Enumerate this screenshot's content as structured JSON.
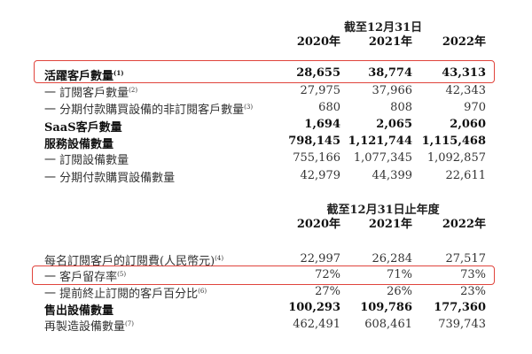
{
  "section1": {
    "header": "截至12月31日",
    "years": [
      "2020年",
      "2021年",
      "2022年"
    ],
    "rows": [
      {
        "label": "活躍客戶數量",
        "note": "(1)",
        "values": [
          "28,655",
          "38,774",
          "43,313"
        ],
        "bold": true,
        "highlighted": true
      },
      {
        "label": "一 訂閱客戶數量",
        "note": "(2)",
        "values": [
          "27,975",
          "37,966",
          "42,343"
        ],
        "bold": false
      },
      {
        "label": "一 分期付款購買設備的非訂閱客戶數量",
        "note": "(3)",
        "values": [
          "680",
          "808",
          "970"
        ],
        "bold": false
      },
      {
        "label": "SaaS客戶數量",
        "note": "",
        "values": [
          "1,694",
          "2,065",
          "2,060"
        ],
        "bold": true
      },
      {
        "label": "服務設備數量",
        "note": "",
        "values": [
          "798,145",
          "1,121,744",
          "1,115,468"
        ],
        "bold": true
      },
      {
        "label": "一 訂閱設備數量",
        "note": "",
        "values": [
          "755,166",
          "1,077,345",
          "1,092,857"
        ],
        "bold": false
      },
      {
        "label": "一 分期付款購買設備數量",
        "note": "",
        "values": [
          "42,979",
          "44,399",
          "22,611"
        ],
        "bold": false
      }
    ]
  },
  "section2": {
    "header": "截至12月31日止年度",
    "years": [
      "2020年",
      "2021年",
      "2022年"
    ],
    "rows": [
      {
        "label": "每名訂閱客戶的訂閱費(人民幣元)",
        "note": "(4)",
        "values": [
          "22,997",
          "26,284",
          "27,517"
        ],
        "bold": false
      },
      {
        "label": "一 客戶留存率",
        "note": "(5)",
        "values": [
          "72%",
          "71%",
          "73%"
        ],
        "bold": false,
        "highlighted": true
      },
      {
        "label": "一 提前終止訂閱的客戶百分比",
        "note": "(6)",
        "values": [
          "27%",
          "26%",
          "23%"
        ],
        "bold": false
      },
      {
        "label": "售出設備數量",
        "note": "",
        "values": [
          "100,293",
          "109,786",
          "177,360"
        ],
        "bold": true
      },
      {
        "label": "再製造設備數量",
        "note": "(7)",
        "values": [
          "462,491",
          "608,461",
          "739,743"
        ],
        "bold": false
      }
    ]
  },
  "colors": {
    "highlight_border": "#e0443c",
    "text": "#333333"
  }
}
